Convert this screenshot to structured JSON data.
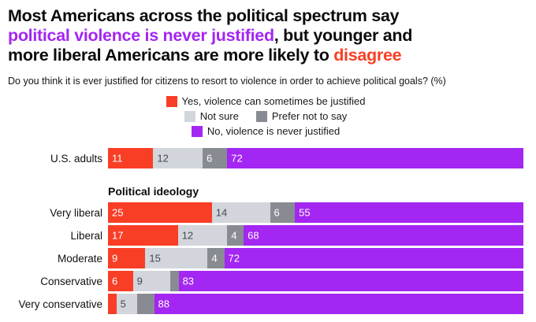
{
  "colors": {
    "yes": "#F93E26",
    "not_sure": "#D2D6DC",
    "prefer_not": "#888C92",
    "no": "#A326F2",
    "title_purple": "#A326F2",
    "title_red": "#F93E26",
    "label_on_light": "#45484E",
    "label_on_dark": "#FFFFFF"
  },
  "title": {
    "part1": "Most Americans across the political spectrum say",
    "part2_purple": "political violence is never justified",
    "part3": ", but younger and",
    "part4": "more liberal Americans are more likely to ",
    "part5_red": "disagree"
  },
  "subtitle": "Do you think it is ever justified for citizens to resort to violence in order to achieve political goals? (%)",
  "chart_data": {
    "type": "bar",
    "orientation": "horizontal",
    "stacked": true,
    "unit": "percent",
    "xlim": [
      0,
      100
    ],
    "grid": false,
    "legend_position": "top-center",
    "series": [
      {
        "name": "Yes, violence can sometimes be justified",
        "key": "yes"
      },
      {
        "name": "Not sure",
        "key": "not_sure"
      },
      {
        "name": "Prefer not to say",
        "key": "prefer_not"
      },
      {
        "name": "No, violence is never justified",
        "key": "no"
      }
    ],
    "groups": [
      {
        "heading": null,
        "rows": [
          {
            "label": "U.S. adults",
            "values": [
              11,
              12,
              6,
              72
            ],
            "shown": [
              "11",
              "12",
              "6",
              "72"
            ]
          }
        ]
      },
      {
        "heading": "Political ideology",
        "rows": [
          {
            "label": "Very liberal",
            "values": [
              25,
              14,
              6,
              55
            ],
            "shown": [
              "25",
              "14",
              "6",
              "55"
            ]
          },
          {
            "label": "Liberal",
            "values": [
              17,
              12,
              4,
              68
            ],
            "shown": [
              "17",
              "12",
              "4",
              "68"
            ]
          },
          {
            "label": "Moderate",
            "values": [
              9,
              15,
              4,
              72
            ],
            "shown": [
              "9",
              "15",
              "4",
              "72"
            ]
          },
          {
            "label": "Conservative",
            "values": [
              6,
              9,
              2,
              83
            ],
            "shown": [
              "6",
              "9",
              "",
              "83"
            ]
          },
          {
            "label": "Very conservative",
            "values": [
              2,
              5,
              4,
              88
            ],
            "shown": [
              "",
              "5",
              "",
              "88"
            ]
          }
        ]
      }
    ]
  }
}
